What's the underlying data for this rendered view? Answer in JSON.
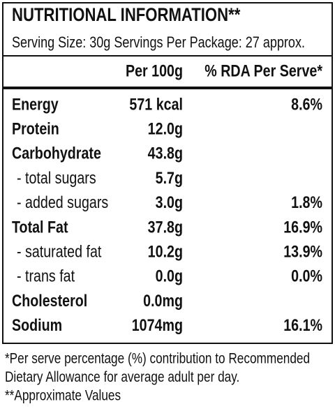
{
  "title": "NUTRITIONAL INFORMATION**",
  "serving": "Serving Size: 30g  Servings Per Package: 27 approx.",
  "table": {
    "headers": [
      "Per 100g",
      "% RDA Per Serve*"
    ],
    "rows": [
      {
        "label": "Energy",
        "per_100g": "571 kcal",
        "rda": "8.6%"
      },
      {
        "label": "Protein",
        "per_100g": "12.0g",
        "rda": null
      },
      {
        "label": "Carbohydrate",
        "per_100g": "43.8g",
        "rda": null
      },
      {
        "label": "- total sugars",
        "per_100g": "5.7g",
        "rda": null
      },
      {
        "label": "- added sugars",
        "per_100g": "3.0g",
        "rda": "1.8%"
      },
      {
        "label": "Total Fat",
        "per_100g": "37.8g",
        "rda": "16.9%"
      },
      {
        "label": "- saturated fat",
        "per_100g": "10.2g",
        "rda": "13.9%"
      },
      {
        "label": "- trans fat",
        "per_100g": "0.0g",
        "rda": "0.0%"
      },
      {
        "label": "Cholesterol",
        "per_100g": "0.0mg",
        "rda": null
      },
      {
        "label": "Sodium",
        "per_100g": "1074mg",
        "rda": "16.1%"
      }
    ]
  },
  "footnotes": [
    "*Per serve percentage (%) contribution to Recommended",
    "Dietary Allowance for average adult per day.",
    "**Approximate Values"
  ]
}
